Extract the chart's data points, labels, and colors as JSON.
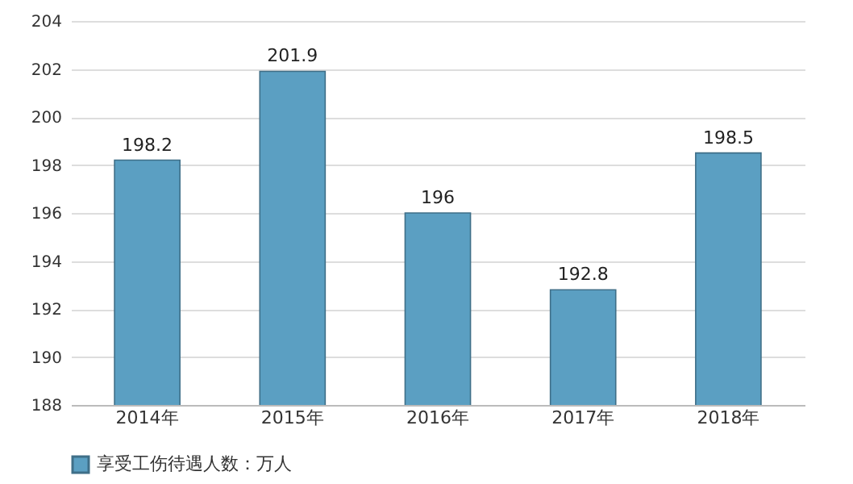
{
  "chart_data": {
    "type": "bar",
    "categories": [
      "2014年",
      "2015年",
      "2016年",
      "2017年",
      "2018年"
    ],
    "series": [
      {
        "name": "享受工伤待遇人数：万人",
        "color": "#5b9fc2",
        "values": [
          198.2,
          201.9,
          196,
          192.8,
          198.5
        ]
      }
    ],
    "ylim": [
      188,
      204
    ],
    "yticks": [
      188,
      190,
      192,
      194,
      196,
      198,
      200,
      202,
      204
    ],
    "grid": "y",
    "legend": "bottom",
    "data_labels": true
  }
}
